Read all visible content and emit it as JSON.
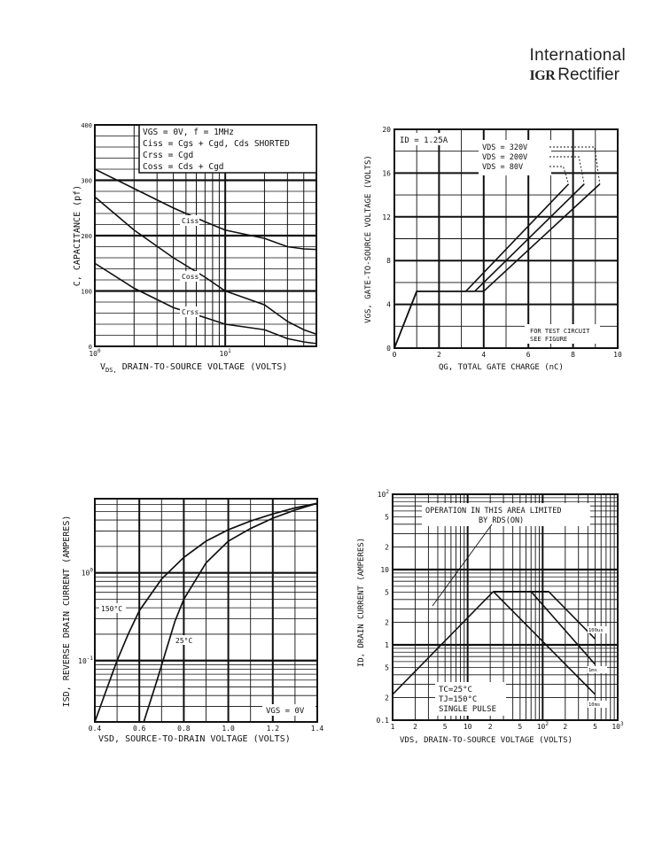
{
  "brand": {
    "line1": "International",
    "logo": "IGR",
    "line2": "Rectifier"
  },
  "chart_data": [
    {
      "type": "line",
      "xscale": "log",
      "xlim": [
        1,
        50
      ],
      "ylim": [
        0,
        400
      ],
      "x_ticks": [
        {
          "v": 1,
          "base": "10",
          "exp": "0"
        },
        {
          "v": 10,
          "base": "10",
          "exp": "1"
        }
      ],
      "y_ticks": [
        0,
        100,
        200,
        300,
        400
      ],
      "xlabel": "VDS, DRAIN-TO-SOURCE VOLTAGE (VOLTS)",
      "xlabel_sub": "DS,",
      "xlabel_rest": "DRAIN-TO-SOURCE VOLTAGE (VOLTS)",
      "ylabel": "C, CAPACITANCE (pf)",
      "legend_box": [
        "VGS = 0V, f = 1MHz",
        "Ciss = Cgs + Cgd, Cds SHORTED",
        "Crss = Cgd",
        "Coss = Cds + Cgd"
      ],
      "series": [
        {
          "name": "Ciss",
          "x": [
            1,
            2,
            4,
            7,
            10,
            20,
            30,
            40,
            50
          ],
          "y": [
            320,
            285,
            250,
            225,
            210,
            195,
            180,
            176,
            175
          ]
        },
        {
          "name": "Coss",
          "x": [
            1,
            2,
            4,
            7,
            10,
            20,
            30,
            40,
            50
          ],
          "y": [
            270,
            210,
            160,
            125,
            100,
            75,
            45,
            30,
            22
          ]
        },
        {
          "name": "Crss",
          "x": [
            1,
            2,
            4,
            7,
            10,
            20,
            30,
            40,
            50
          ],
          "y": [
            150,
            105,
            70,
            52,
            40,
            30,
            14,
            8,
            5
          ]
        }
      ]
    },
    {
      "type": "line",
      "xlim": [
        0,
        10
      ],
      "ylim": [
        0,
        20
      ],
      "x_ticks": [
        0,
        2,
        4,
        6,
        8,
        10
      ],
      "y_ticks": [
        0,
        4,
        8,
        12,
        16,
        20
      ],
      "xlabel": "QG, TOTAL GATE CHARGE (nC)",
      "ylabel": "VGS, GATE-TO-SOURCE VOLTAGE (VOLTS)",
      "annotation": "ID = 1.25A",
      "note": [
        "FOR TEST CIRCUIT",
        "SEE FIGURE"
      ],
      "series": [
        {
          "name": "VDS = 320V",
          "x": [
            0,
            1,
            4,
            9.2
          ],
          "y": [
            0,
            5.2,
            5.2,
            15
          ]
        },
        {
          "name": "VDS = 200V",
          "x": [
            0,
            1,
            3.6,
            8.5
          ],
          "y": [
            0,
            5.2,
            5.2,
            15
          ]
        },
        {
          "name": "VDS = 80V",
          "x": [
            0,
            1,
            3.2,
            7.8
          ],
          "y": [
            0,
            5.2,
            5.2,
            15
          ]
        }
      ]
    },
    {
      "type": "line",
      "yscale": "log",
      "xlim": [
        0.4,
        1.4
      ],
      "ylim": [
        0.02,
        7
      ],
      "x_ticks": [
        0.4,
        0.6,
        0.8,
        1.0,
        1.2,
        1.4
      ],
      "y_ticks": [
        {
          "v": 0.1,
          "base": "10",
          "exp": "-1"
        },
        {
          "v": 1,
          "base": "10",
          "exp": "0"
        }
      ],
      "xlabel": "VSD, SOURCE-TO-DRAIN VOLTAGE (VOLTS)",
      "ylabel": "ISD, REVERSE DRAIN CURRENT (AMPERES)",
      "annotation": "VGS = 0V",
      "series": [
        {
          "name": "150°C",
          "x": [
            0.4,
            0.45,
            0.5,
            0.55,
            0.6,
            0.7,
            0.8,
            0.9,
            1.0,
            1.1,
            1.2,
            1.3,
            1.4
          ],
          "y": [
            0.02,
            0.045,
            0.1,
            0.2,
            0.37,
            0.85,
            1.5,
            2.3,
            3.1,
            3.9,
            4.7,
            5.5,
            6.2
          ]
        },
        {
          "name": "25°C",
          "x": [
            0.62,
            0.68,
            0.72,
            0.76,
            0.8,
            0.9,
            1.0,
            1.1,
            1.2,
            1.3,
            1.4
          ],
          "y": [
            0.02,
            0.06,
            0.13,
            0.28,
            0.5,
            1.3,
            2.3,
            3.2,
            4.2,
            5.2,
            6.2
          ]
        }
      ]
    },
    {
      "type": "line",
      "xscale": "log",
      "yscale": "log",
      "xlim": [
        1,
        1000
      ],
      "ylim": [
        0.1,
        100
      ],
      "x_ticks": [
        {
          "v": 1,
          "t": "1"
        },
        {
          "v": 2,
          "t": "2"
        },
        {
          "v": 5,
          "t": "5"
        },
        {
          "v": 10,
          "t": "10"
        },
        {
          "v": 20,
          "t": "2"
        },
        {
          "v": 50,
          "t": "5"
        },
        {
          "v": 100,
          "base": "10",
          "exp": "2"
        },
        {
          "v": 200,
          "t": "2"
        },
        {
          "v": 500,
          "t": "5"
        },
        {
          "v": 1000,
          "base": "10",
          "exp": "3"
        }
      ],
      "y_ticks": [
        {
          "v": 0.1,
          "t": "0.1"
        },
        {
          "v": 0.2,
          "t": "2"
        },
        {
          "v": 0.5,
          "t": "5"
        },
        {
          "v": 1,
          "t": "1"
        },
        {
          "v": 2,
          "t": "2"
        },
        {
          "v": 5,
          "t": "5"
        },
        {
          "v": 10,
          "t": "10"
        },
        {
          "v": 20,
          "t": "2"
        },
        {
          "v": 50,
          "t": "5"
        },
        {
          "v": 100,
          "base": "10",
          "exp": "2"
        }
      ],
      "xlabel": "VDS, DRAIN-TO-SOURCE VOLTAGE (VOLTS)",
      "ylabel": "ID, DRAIN CURRENT (AMPERES)",
      "annotation": [
        "OPERATION IN THIS AREA LIMITED",
        "BY RDS(ON)"
      ],
      "conditions": [
        "TC=25°C",
        "TJ=150°C",
        "SINGLE PULSE"
      ],
      "series": [
        {
          "name": "RDS(ON) limit",
          "x": [
            1,
            22
          ],
          "y": [
            0.22,
            5.1
          ]
        },
        {
          "name": "100us",
          "x": [
            22,
            120,
            500
          ],
          "y": [
            5.1,
            5.1,
            1.2
          ]
        },
        {
          "name": "1ms",
          "x": [
            22,
            70,
            500
          ],
          "y": [
            5.1,
            5.1,
            0.55
          ]
        },
        {
          "name": "10ms",
          "x": [
            22,
            500
          ],
          "y": [
            5.1,
            0.22
          ]
        }
      ],
      "series_labels": [
        "100us",
        "1ms",
        "10ms"
      ]
    }
  ]
}
